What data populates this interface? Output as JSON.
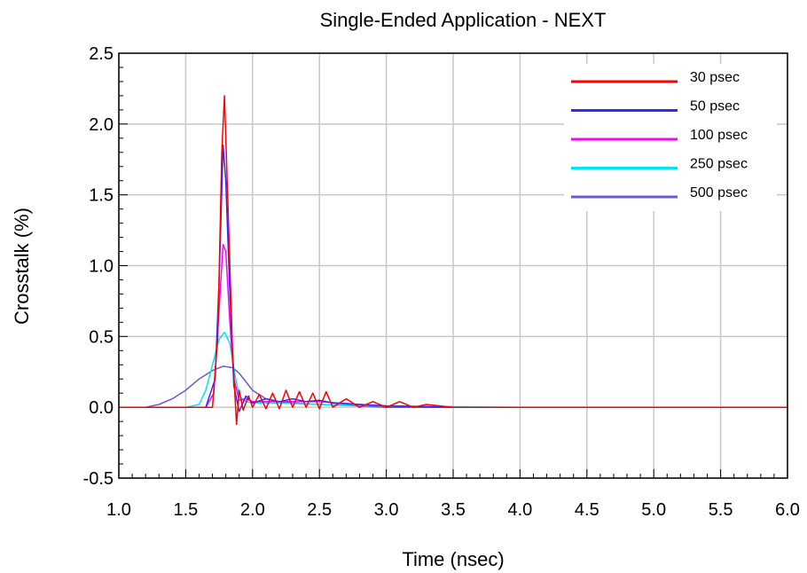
{
  "chart_data": {
    "type": "line",
    "title": "Single-Ended Application - NEXT",
    "xlabel": "Time (nsec)",
    "ylabel": "Crosstalk (%)",
    "xlim": [
      1.0,
      6.0
    ],
    "ylim": [
      -0.5,
      2.5
    ],
    "x_ticks": [
      "1.0",
      "1.5",
      "2.0",
      "2.5",
      "3.0",
      "3.5",
      "4.0",
      "4.5",
      "5.0",
      "5.5",
      "6.0"
    ],
    "y_ticks": [
      "2.5",
      "2.0",
      "1.5",
      "1.0",
      "0.5",
      "0.0",
      "-0.5"
    ],
    "grid": true,
    "legend_position": "top-right",
    "series": [
      {
        "name": "30 psec",
        "color": "#ff0000",
        "x": [
          1.0,
          1.6,
          1.7,
          1.74,
          1.77,
          1.79,
          1.82,
          1.85,
          1.88,
          1.9,
          1.93,
          1.97,
          2.0,
          2.05,
          2.1,
          2.15,
          2.2,
          2.25,
          2.3,
          2.35,
          2.4,
          2.45,
          2.5,
          2.55,
          2.6,
          2.7,
          2.8,
          2.9,
          3.0,
          3.1,
          3.2,
          3.3,
          3.5,
          4.0,
          4.5,
          5.0,
          5.5,
          6.0
        ],
        "y": [
          0.0,
          0.0,
          0.0,
          0.5,
          1.8,
          2.2,
          1.3,
          0.4,
          -0.12,
          0.12,
          -0.02,
          0.08,
          0.0,
          0.09,
          -0.01,
          0.1,
          -0.01,
          0.12,
          0.0,
          0.11,
          0.0,
          0.1,
          -0.01,
          0.11,
          0.0,
          0.06,
          0.0,
          0.04,
          0.0,
          0.04,
          0.0,
          0.02,
          0.0,
          0.0,
          0.0,
          0.0,
          0.0,
          0.0
        ]
      },
      {
        "name": "50 psec",
        "color": "#2b2bff",
        "x": [
          1.0,
          1.65,
          1.72,
          1.75,
          1.78,
          1.8,
          1.83,
          1.86,
          1.9,
          1.95,
          2.0,
          2.1,
          2.2,
          2.3,
          2.4,
          2.5,
          2.6,
          2.8,
          3.0,
          3.5,
          4.0,
          5.0,
          6.0
        ],
        "y": [
          0.0,
          0.0,
          0.2,
          0.9,
          1.85,
          1.6,
          0.8,
          0.15,
          -0.03,
          0.08,
          0.03,
          0.06,
          0.04,
          0.06,
          0.04,
          0.05,
          0.03,
          0.02,
          0.01,
          0.0,
          0.0,
          0.0,
          0.0
        ]
      },
      {
        "name": "100 psec",
        "color": "#ff00ff",
        "x": [
          1.0,
          1.65,
          1.71,
          1.75,
          1.78,
          1.8,
          1.83,
          1.86,
          1.9,
          1.95,
          2.0,
          2.2,
          2.5,
          2.8,
          3.0,
          3.5,
          4.0,
          5.0,
          6.0
        ],
        "y": [
          0.0,
          0.0,
          0.1,
          0.7,
          1.15,
          1.1,
          0.6,
          0.2,
          0.05,
          0.06,
          0.04,
          0.04,
          0.04,
          0.02,
          0.01,
          0.0,
          0.0,
          0.0,
          0.0
        ]
      },
      {
        "name": "250 psec",
        "color": "#00e5f0",
        "x": [
          1.0,
          1.5,
          1.6,
          1.65,
          1.7,
          1.75,
          1.79,
          1.83,
          1.87,
          1.9,
          1.95,
          2.0,
          2.2,
          2.5,
          3.0,
          4.0,
          5.0,
          6.0
        ],
        "y": [
          0.0,
          0.0,
          0.02,
          0.12,
          0.3,
          0.48,
          0.53,
          0.45,
          0.22,
          0.08,
          0.04,
          0.03,
          0.03,
          0.02,
          0.01,
          0.0,
          0.0,
          0.0
        ]
      },
      {
        "name": "500 psec",
        "color": "#6a5acd",
        "x": [
          1.0,
          1.2,
          1.3,
          1.4,
          1.5,
          1.6,
          1.7,
          1.78,
          1.85,
          1.9,
          1.95,
          2.0,
          2.1,
          2.2,
          2.3,
          2.5,
          2.8,
          3.0,
          3.5,
          4.0,
          5.0,
          6.0
        ],
        "y": [
          0.0,
          0.0,
          0.02,
          0.06,
          0.12,
          0.2,
          0.26,
          0.29,
          0.28,
          0.24,
          0.18,
          0.12,
          0.06,
          0.04,
          0.03,
          0.02,
          0.01,
          0.0,
          0.0,
          0.0,
          0.0,
          0.0
        ]
      }
    ]
  }
}
